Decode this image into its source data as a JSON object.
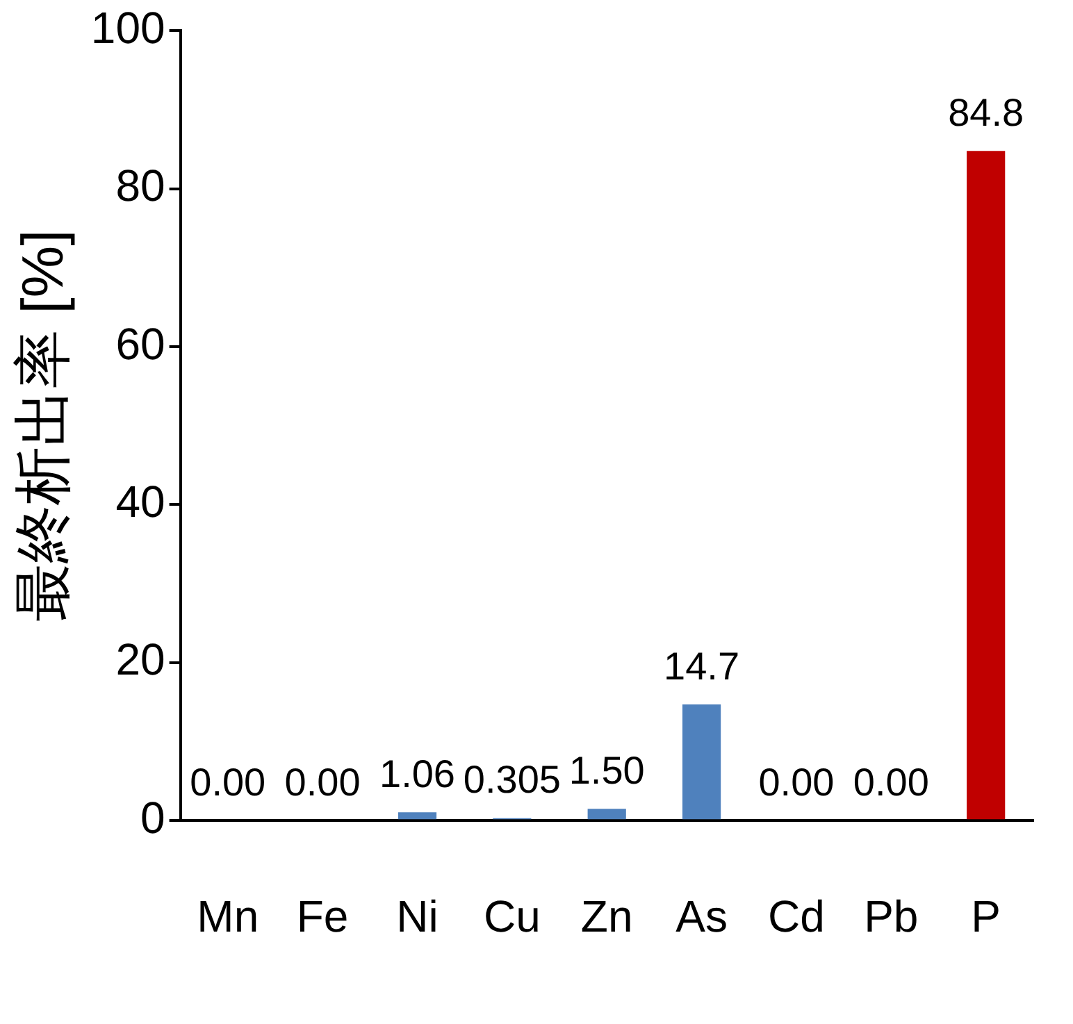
{
  "chart_data": {
    "type": "bar",
    "ylabel": "最終析出率 [%]",
    "categories": [
      "Mn",
      "Fe",
      "Ni",
      "Cu",
      "Zn",
      "As",
      "Cd",
      "Pb",
      "P"
    ],
    "values": [
      0,
      0,
      1.06,
      0.305,
      1.5,
      14.7,
      0,
      0,
      84.8
    ],
    "value_labels": [
      "0.00",
      "0.00",
      "1.06",
      "0.305",
      "1.50",
      "14.7",
      "0.00",
      "0.00",
      "84.8"
    ],
    "colors": [
      "#4f81bd",
      "#4f81bd",
      "#4f81bd",
      "#4f81bd",
      "#4f81bd",
      "#4f81bd",
      "#4f81bd",
      "#4f81bd",
      "#c00000"
    ],
    "ylim": [
      0,
      100
    ],
    "yticks": [
      0,
      20,
      40,
      60,
      80,
      100
    ],
    "legend": false
  }
}
